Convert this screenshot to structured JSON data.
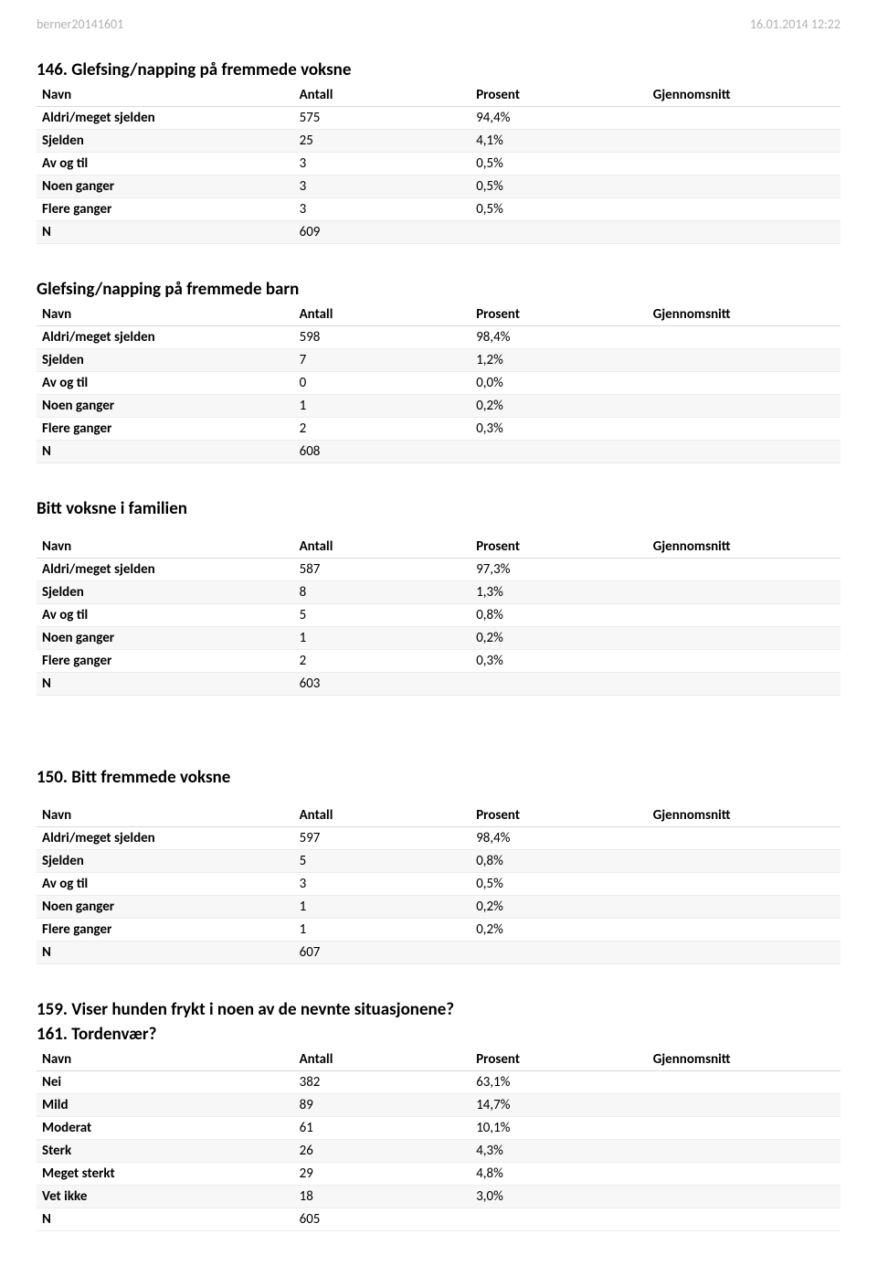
{
  "header": {
    "left": "berner20141601",
    "right": "16.01.2014 12:22"
  },
  "columns": {
    "navn": "Navn",
    "antall": "Antall",
    "prosent": "Prosent",
    "gjennomsnitt": "Gjennomsnitt"
  },
  "sections": [
    {
      "title": "146. Glefsing/napping på fremmede voksne",
      "rows": [
        {
          "label": "Aldri/meget sjelden",
          "antall": "575",
          "prosent": "94,4%"
        },
        {
          "label": "Sjelden",
          "antall": "25",
          "prosent": "4,1%"
        },
        {
          "label": "Av og til",
          "antall": "3",
          "prosent": "0,5%"
        },
        {
          "label": "Noen ganger",
          "antall": "3",
          "prosent": "0,5%"
        },
        {
          "label": "Flere ganger",
          "antall": "3",
          "prosent": "0,5%"
        },
        {
          "label": "N",
          "antall": "609",
          "prosent": ""
        }
      ]
    },
    {
      "title": "Glefsing/napping på fremmede barn",
      "rows": [
        {
          "label": "Aldri/meget sjelden",
          "antall": "598",
          "prosent": "98,4%"
        },
        {
          "label": "Sjelden",
          "antall": "7",
          "prosent": "1,2%"
        },
        {
          "label": "Av og til",
          "antall": "0",
          "prosent": "0,0%"
        },
        {
          "label": "Noen ganger",
          "antall": "1",
          "prosent": "0,2%"
        },
        {
          "label": "Flere ganger",
          "antall": "2",
          "prosent": "0,3%"
        },
        {
          "label": "N",
          "antall": "608",
          "prosent": ""
        }
      ]
    },
    {
      "title": "Bitt voksne i familien",
      "pre_gap": true,
      "rows": [
        {
          "label": "Aldri/meget sjelden",
          "antall": "587",
          "prosent": "97,3%"
        },
        {
          "label": "Sjelden",
          "antall": "8",
          "prosent": "1,3%"
        },
        {
          "label": "Av og til",
          "antall": "5",
          "prosent": "0,8%"
        },
        {
          "label": "Noen ganger",
          "antall": "1",
          "prosent": "0,2%"
        },
        {
          "label": "Flere ganger",
          "antall": "2",
          "prosent": "0,3%"
        },
        {
          "label": "N",
          "antall": "603",
          "prosent": ""
        }
      ]
    },
    {
      "title": "150. Bitt fremmede voksne",
      "big_gap": true,
      "pre_gap": true,
      "rows": [
        {
          "label": "Aldri/meget sjelden",
          "antall": "597",
          "prosent": "98,4%"
        },
        {
          "label": "Sjelden",
          "antall": "5",
          "prosent": "0,8%"
        },
        {
          "label": "Av og til",
          "antall": "3",
          "prosent": "0,5%"
        },
        {
          "label": "Noen ganger",
          "antall": "1",
          "prosent": "0,2%"
        },
        {
          "label": "Flere ganger",
          "antall": "1",
          "prosent": "0,2%"
        },
        {
          "label": "N",
          "antall": "607",
          "prosent": ""
        }
      ]
    },
    {
      "title": "159. Viser hunden frykt i noen av de nevnte situasjonene?",
      "subtitle": "161. Tordenvær?",
      "rows": [
        {
          "label": "Nei",
          "antall": "382",
          "prosent": "63,1%"
        },
        {
          "label": "Mild",
          "antall": "89",
          "prosent": "14,7%"
        },
        {
          "label": "Moderat",
          "antall": "61",
          "prosent": "10,1%"
        },
        {
          "label": "Sterk",
          "antall": "26",
          "prosent": "4,3%"
        },
        {
          "label": "Meget sterkt",
          "antall": "29",
          "prosent": "4,8%"
        },
        {
          "label": "Vet ikke",
          "antall": "18",
          "prosent": "3,0%"
        },
        {
          "label": "N",
          "antall": "605",
          "prosent": ""
        }
      ]
    }
  ]
}
